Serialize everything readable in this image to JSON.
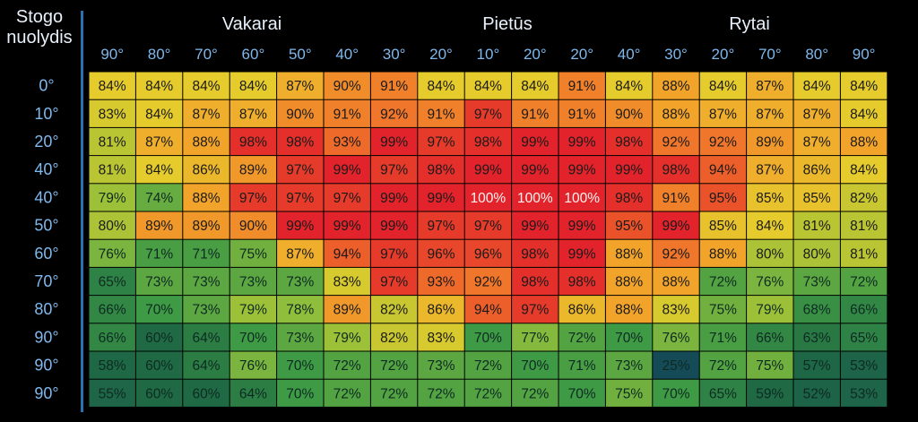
{
  "corner_label": {
    "line1": "Stogo",
    "line2": "nuolydis"
  },
  "groups": [
    {
      "label": "Vakarai"
    },
    {
      "label": "Pietūs"
    },
    {
      "label": "Rytai"
    }
  ],
  "colors": {
    "background": "#000000",
    "header_text": "#7fb8ec",
    "row_label_text": "#7fb8ec",
    "axis_line": "#2d6fb3",
    "scale": [
      "#1f6a44",
      "#3f9a45",
      "#8fbd3c",
      "#e5cc2c",
      "#f2a42a",
      "#ee6a2a",
      "#e2232b"
    ]
  },
  "chart_data": {
    "type": "heatmap",
    "x": [
      "90°",
      "80°",
      "70°",
      "60°",
      "50°",
      "40°",
      "30°",
      "20°",
      "10°",
      "20°",
      "20°",
      "40°",
      "30°",
      "20°",
      "70°",
      "80°",
      "90°"
    ],
    "y": [
      "0°",
      "10°",
      "20°",
      "40°",
      "40°",
      "50°",
      "60°",
      "70°",
      "80°",
      "90°",
      "90°",
      "90°"
    ],
    "values": [
      [
        84,
        84,
        84,
        84,
        87,
        90,
        91,
        84,
        84,
        84,
        91,
        84,
        88,
        84,
        87,
        84,
        84
      ],
      [
        83,
        84,
        87,
        87,
        90,
        91,
        92,
        91,
        97,
        91,
        91,
        90,
        88,
        87,
        87,
        87,
        84
      ],
      [
        81,
        87,
        88,
        98,
        98,
        93,
        99,
        97,
        98,
        99,
        99,
        98,
        92,
        92,
        89,
        87,
        88
      ],
      [
        81,
        84,
        86,
        89,
        97,
        99,
        97,
        98,
        99,
        99,
        99,
        99,
        98,
        94,
        87,
        86,
        84
      ],
      [
        79,
        74,
        88,
        97,
        97,
        97,
        99,
        99,
        100,
        100,
        100,
        98,
        91,
        95,
        85,
        85,
        82
      ],
      [
        80,
        89,
        89,
        90,
        99,
        99,
        99,
        97,
        97,
        99,
        99,
        95,
        99,
        85,
        84,
        81,
        81
      ],
      [
        76,
        71,
        71,
        75,
        87,
        94,
        97,
        96,
        96,
        98,
        99,
        88,
        92,
        88,
        80,
        80,
        81
      ],
      [
        65,
        73,
        73,
        73,
        73,
        83,
        97,
        93,
        92,
        98,
        98,
        88,
        88,
        72,
        76,
        73,
        72
      ],
      [
        66,
        70,
        73,
        79,
        78,
        89,
        82,
        86,
        94,
        97,
        86,
        88,
        83,
        75,
        79,
        68,
        66
      ],
      [
        66,
        60,
        64,
        70,
        73,
        79,
        82,
        83,
        70,
        77,
        72,
        70,
        76,
        71,
        66,
        63,
        65
      ],
      [
        58,
        60,
        64,
        76,
        70,
        72,
        72,
        73,
        72,
        70,
        71,
        73,
        25,
        72,
        75,
        57,
        53
      ],
      [
        55,
        60,
        60,
        64,
        70,
        72,
        72,
        72,
        72,
        72,
        70,
        75,
        70,
        65,
        59,
        52,
        53
      ]
    ],
    "value_suffix": "%",
    "column_groups": [
      {
        "label": "Vakarai",
        "columns": [
          0,
          6
        ]
      },
      {
        "label": "Pietūs",
        "columns": [
          7,
          10
        ]
      },
      {
        "label": "Rytai",
        "columns": [
          11,
          16
        ]
      }
    ]
  }
}
